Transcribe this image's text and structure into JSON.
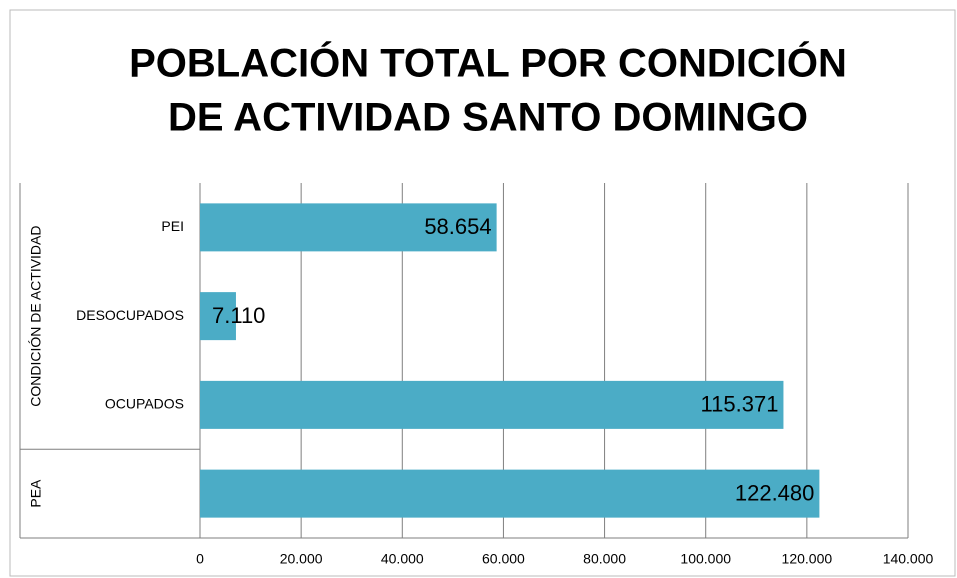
{
  "chart_data": {
    "type": "bar",
    "orientation": "horizontal",
    "title": [
      "POBLACIÓN TOTAL POR CONDICIÓN",
      "DE ACTIVIDAD SANTO DOMINGO"
    ],
    "categories": [
      "PEI",
      "DESOCUPADOS",
      "OCUPADOS",
      null
    ],
    "category_groups": [
      "CONDICIÓN DE ACTIVIDAD",
      "CONDICIÓN DE ACTIVIDAD",
      "CONDICIÓN DE ACTIVIDAD",
      "PEA"
    ],
    "values": [
      58654,
      7110,
      115371,
      122480
    ],
    "value_labels": [
      "58.654",
      "7.110",
      "115.371",
      "122.480"
    ],
    "color": "#4bacc6",
    "xlim": [
      0,
      140000
    ],
    "xticks": [
      0,
      {
        "value": 20000,
        "label": "20.000"
      },
      {
        "value": 40000,
        "label": "40.000"
      },
      {
        "value": 60000,
        "label": "60.000"
      },
      {
        "value": 80000,
        "label": "80.000"
      },
      {
        "value": 100000,
        "label": "100.000"
      },
      {
        "value": 120000,
        "label": "120.000"
      },
      {
        "value": 140000,
        "label": "140.000"
      }
    ],
    "grid": true
  }
}
